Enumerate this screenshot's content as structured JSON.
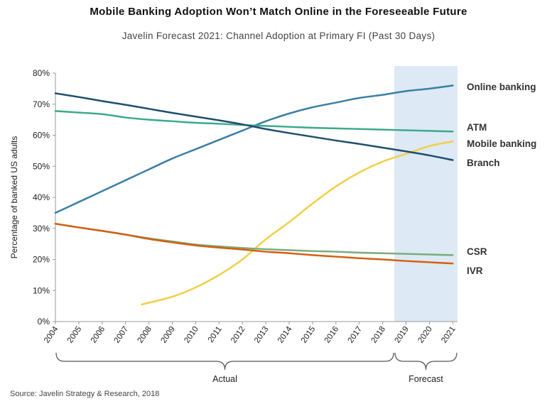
{
  "title": "Mobile Banking Adoption Won’t Match Online in the Foreseeable Future",
  "subtitle": "Javelin Forecast 2021: Channel Adoption at Primary FI (Past 30 Days)",
  "source": "Source: Javelin Strategy & Research, 2018",
  "chart_data": {
    "type": "line",
    "ylabel": "Percentage of banked US adults",
    "xlabel": "",
    "ylim": [
      0,
      80
    ],
    "yticks": [
      "0%",
      "10%",
      "20%",
      "30%",
      "40%",
      "50%",
      "60%",
      "70%",
      "80%"
    ],
    "x": [
      2004,
      2005,
      2006,
      2007,
      2008,
      2009,
      2010,
      2011,
      2012,
      2013,
      2014,
      2015,
      2016,
      2017,
      2018,
      2019,
      2020,
      2021
    ],
    "forecast_region": {
      "from": 2018.5,
      "to": 2021.2,
      "color": "#dde9f4"
    },
    "brackets": [
      {
        "label": "Actual",
        "from": 2004,
        "to": 2018.5
      },
      {
        "label": "Forecast",
        "from": 2018.5,
        "to": 2021.2
      }
    ],
    "series": [
      {
        "name": "Online banking",
        "color": "#3b7ea6",
        "values": [
          35,
          38.5,
          42,
          45.5,
          49,
          52.5,
          55.5,
          58.5,
          61.5,
          64.5,
          67,
          69,
          70.5,
          72,
          73,
          74.2,
          75,
          76
        ]
      },
      {
        "name": "ATM",
        "color": "#3aaa8a",
        "values": [
          67.8,
          67.3,
          66.8,
          65.7,
          65,
          64.5,
          64,
          63.7,
          63.3,
          63,
          62.7,
          62.4,
          62.2,
          62,
          61.8,
          61.6,
          61.4,
          61.2
        ]
      },
      {
        "name": "Mobile banking",
        "color": "#f0d048",
        "values": [
          null,
          null,
          null,
          null,
          5.5,
          8,
          11,
          15,
          20,
          26.5,
          32,
          38,
          43.5,
          48,
          51.5,
          54,
          56.5,
          58
        ]
      },
      {
        "name": "Branch",
        "color": "#1f4e6e",
        "values": [
          73.5,
          72.3,
          71,
          69.8,
          68.5,
          67.2,
          66,
          64.8,
          63.5,
          62,
          60.7,
          59.5,
          58.3,
          57.2,
          56,
          54.8,
          53.5,
          52
        ]
      },
      {
        "name": "CSR",
        "color": "#7aab7a",
        "values": [
          31.5,
          30.3,
          29.2,
          28,
          26.8,
          25.8,
          24.8,
          24.2,
          23.7,
          23.3,
          23,
          22.7,
          22.5,
          22.2,
          22,
          21.8,
          21.6,
          21.4
        ]
      },
      {
        "name": "IVR",
        "color": "#d45f10",
        "values": [
          31.5,
          30.3,
          29.2,
          28,
          26.6,
          25.5,
          24.5,
          23.8,
          23.2,
          22.5,
          22,
          21.4,
          20.9,
          20.4,
          20,
          19.5,
          19.1,
          18.7
        ]
      }
    ]
  }
}
